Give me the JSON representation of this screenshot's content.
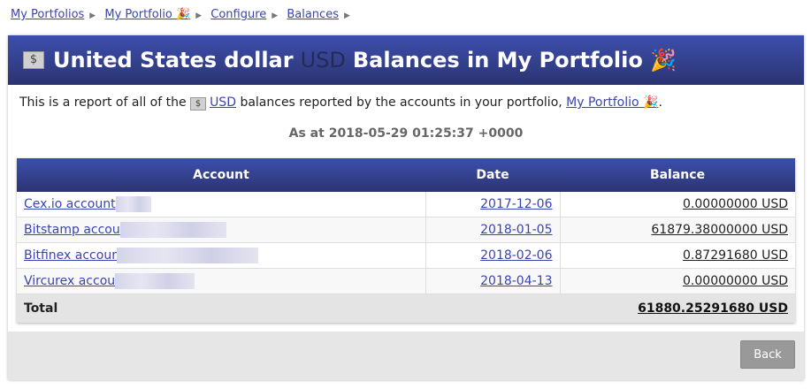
{
  "breadcrumb": [
    "My Portfolios",
    "My Portfolio 🎉",
    "Configure",
    "Balances"
  ],
  "header": {
    "currency_icon": "$",
    "name": "United States dollar",
    "code": "USD",
    "suffix": "Balances in My Portfolio 🎉"
  },
  "intro": {
    "before": "This is a report of all of the",
    "code": "USD",
    "middle": "balances reported by the accounts in your portfolio,",
    "link": "My Portfolio 🎉",
    "end": "."
  },
  "as_at": "As at 2018-05-29 01:25:37 +0000",
  "table": {
    "headers": [
      "Account",
      "Date",
      "Balance"
    ],
    "rows": [
      {
        "account": "Cex.io account",
        "date": "2017-12-06",
        "balance": "0.00000000 USD"
      },
      {
        "account": "Bitstamp accou",
        "date": "2018-01-05",
        "balance": "61879.38000000 USD"
      },
      {
        "account": "Bitfinex accour",
        "date": "2018-02-06",
        "balance": "0.87291680 USD"
      },
      {
        "account": "Vircurex accou",
        "date": "2018-04-13",
        "balance": "0.00000000 USD"
      }
    ],
    "total_label": "Total",
    "total": "61880.25291680 USD"
  },
  "back": "Back"
}
